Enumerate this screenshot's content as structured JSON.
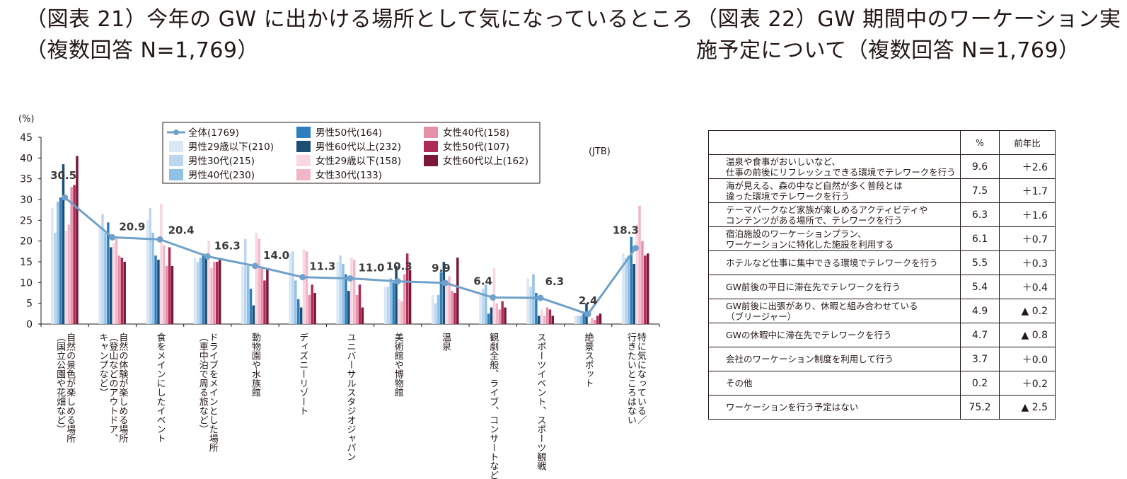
{
  "figure21": {
    "title_line1": "（図表 21）今年の GW に出かける場所として気になっているところ",
    "title_line2": "（複数回答  N=1,769）",
    "source": "(JTB)",
    "chart_data": {
      "type": "bar",
      "title": "今年の GW に出かける場所として気になっているところ",
      "ylabel": "(%)",
      "xlabel": "",
      "ylim": [
        0,
        45
      ],
      "yticks": [
        "0",
        "5",
        "10",
        "15",
        "20",
        "25",
        "30",
        "35",
        "40",
        "45"
      ],
      "categories": [
        "自然の景色が楽しめる場所（国立公園や花畑など）",
        "自然の体験が楽しめる場所（登山などのアウトドア、キャンプなど）",
        "食をメインにしたイベント",
        "ドライブをメインとした場所（車中泊で周る旅など）",
        "動物園や水族館",
        "ディズニーリゾート",
        "ユニバーサルスタジオジャパン",
        "美術館や博物館",
        "温泉",
        "観劇全般、ライブ、コンサートなど",
        "スポーツイベント、スポーツ観戦",
        "絶景スポット",
        "特に気になっている／行きたいところはない"
      ],
      "series": [
        {
          "name": "全体(1769)",
          "color": "#6fa1c9",
          "kind": "line",
          "values": [
            30.5,
            20.9,
            20.4,
            16.3,
            14.0,
            11.3,
            11.0,
            10.3,
            9.9,
            6.4,
            6.3,
            2.4,
            18.3
          ]
        },
        {
          "name": "男性29歳以下(210)",
          "color": "#dae8f5",
          "values": [
            28,
            23,
            25,
            16,
            14,
            17,
            15,
            9,
            7,
            7,
            11,
            2,
            17
          ]
        },
        {
          "name": "男性30代(215)",
          "color": "#bcd6ee",
          "values": [
            22,
            26.5,
            28,
            15,
            20.5,
            17.5,
            16.5,
            9,
            5,
            8.5,
            9,
            2,
            16
          ]
        },
        {
          "name": "男性40代(230)",
          "color": "#92c1e6",
          "values": [
            29.5,
            22,
            22,
            16,
            14,
            10.5,
            14.5,
            11,
            7,
            9.5,
            12,
            2,
            16.5
          ]
        },
        {
          "name": "男性50代(164)",
          "color": "#2e7fc0",
          "values": [
            30.5,
            24.5,
            16.5,
            17,
            8.5,
            6,
            12,
            10,
            12.5,
            2.5,
            7.5,
            2.5,
            21
          ]
        },
        {
          "name": "男性60代以上(232)",
          "color": "#1d4e74",
          "values": [
            38.5,
            18.5,
            15.5,
            16.5,
            4.5,
            4,
            8,
            14,
            15,
            4,
            2,
            5,
            14.5
          ]
        },
        {
          "name": "女性29歳以下(158)",
          "color": "#f8d7e0",
          "values": [
            22.5,
            19.5,
            29,
            20,
            22,
            18,
            16,
            6,
            10,
            13.5,
            3.5,
            0.5,
            24
          ]
        },
        {
          "name": "女性30代(133)",
          "color": "#f2b6c7",
          "values": [
            24,
            20.5,
            19,
            13.5,
            20.5,
            17.5,
            15.5,
            5.5,
            11.5,
            5,
            2,
            1.5,
            28.5
          ]
        },
        {
          "name": "女性40代(158)",
          "color": "#e591aa",
          "values": [
            33,
            16.5,
            14,
            15,
            13.5,
            7,
            7,
            12,
            8,
            3.5,
            4,
            1,
            20
          ]
        },
        {
          "name": "女性50代(107)",
          "color": "#b02a56",
          "values": [
            33.5,
            16,
            18.5,
            15,
            10.5,
            9.5,
            9.5,
            17,
            7.5,
            5.5,
            3.5,
            2,
            16.5
          ]
        },
        {
          "name": "女性60代以上(162)",
          "color": "#7a1738",
          "values": [
            40.5,
            15,
            14,
            15.5,
            13.5,
            7.5,
            4,
            13,
            16,
            4,
            2,
            2.5,
            17
          ]
        }
      ],
      "data_labels": [
        "30.5",
        "20.9",
        "20.4",
        "16.3",
        "14.0",
        "11.3",
        "11.0",
        "10.3",
        "9.9",
        "6.4",
        "6.3",
        "2.4",
        "18.3"
      ],
      "legend_position": "top-center",
      "grid": false
    }
  },
  "figure22": {
    "title_line1": "（図表 22）GW 期間中のワーケーション実",
    "title_line2": "施予定について（複数回答  N=1,769）",
    "table": {
      "headers": [
        "",
        "%",
        "前年比"
      ],
      "rows": [
        {
          "label": [
            "温泉や食事がおいしいなど、",
            "仕事の前後にリフレッシュできる環境でテレワークを行う"
          ],
          "pct": "9.6",
          "diff": "＋2.6"
        },
        {
          "label": [
            "海が見える、森の中など自然が多く普段とは",
            "違った環境でテレワークを行う"
          ],
          "pct": "7.5",
          "diff": "＋1.7"
        },
        {
          "label": [
            "テーマパークなど家族が楽しめるアクティビティや",
            "コンテンツがある場所で、テレワークを行う"
          ],
          "pct": "6.3",
          "diff": "＋1.6"
        },
        {
          "label": [
            "宿泊施設のワーケーションプラン、",
            "ワーケーションに特化した施設を利用する"
          ],
          "pct": "6.1",
          "diff": "＋0.7"
        },
        {
          "label": [
            "ホテルなど仕事に集中できる環境でテレワークを行う"
          ],
          "pct": "5.5",
          "diff": "＋0.3"
        },
        {
          "label": [
            "GW前後の平日に滞在先でテレワークを行う"
          ],
          "pct": "5.4",
          "diff": "＋0.4"
        },
        {
          "label": [
            "GW前後に出張があり、休暇と組み合わせている",
            "（ブリージャー）"
          ],
          "pct": "4.9",
          "diff": "▲ 0.2"
        },
        {
          "label": [
            "GWの休暇中に滞在先でテレワークを行う"
          ],
          "pct": "4.7",
          "diff": "▲ 0.8"
        },
        {
          "label": [
            "会社のワーケーション制度を利用して行う"
          ],
          "pct": "3.7",
          "diff": "＋0.0"
        },
        {
          "label": [
            "その他"
          ],
          "pct": "0.2",
          "diff": "＋0.2"
        },
        {
          "label": [
            "ワーケーションを行う予定はない"
          ],
          "pct": "75.2",
          "diff": "▲ 2.5"
        }
      ]
    }
  }
}
